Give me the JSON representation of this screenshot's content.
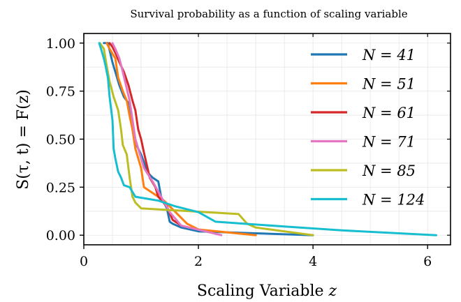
{
  "chart_data": {
    "type": "line",
    "title": "Survival probability as a function of scaling variable",
    "xlabel": "Scaling Variable z",
    "ylabel": "S(τ, t) = F(z)",
    "xlim": [
      0,
      6.4
    ],
    "ylim": [
      -0.05,
      1.05
    ],
    "xticks": [
      0,
      2,
      4,
      6
    ],
    "yticks": [
      0.0,
      0.25,
      0.5,
      0.75,
      1.0
    ],
    "xtick_labels": [
      "0",
      "2",
      "4",
      "6"
    ],
    "ytick_labels": [
      "0.00",
      "0.25",
      "0.50",
      "0.75",
      "1.00"
    ],
    "grid": true,
    "legend_position": "right",
    "series": [
      {
        "name": "N = 41",
        "color": "#1f77b4",
        "x": [
          0.35,
          0.42,
          0.5,
          0.55,
          0.62,
          0.7,
          0.8,
          0.85,
          0.9,
          1.0,
          1.05,
          1.1,
          1.2,
          1.3,
          1.35,
          1.45,
          1.5,
          1.55,
          1.7,
          2.0,
          3.0,
          4.0
        ],
        "y": [
          1.0,
          1.0,
          0.9,
          0.85,
          0.78,
          0.72,
          0.68,
          0.55,
          0.48,
          0.42,
          0.38,
          0.33,
          0.3,
          0.28,
          0.2,
          0.14,
          0.07,
          0.06,
          0.04,
          0.02,
          0.01,
          0.0
        ]
      },
      {
        "name": "N = 51",
        "color": "#ff7f0e",
        "x": [
          0.4,
          0.45,
          0.55,
          0.6,
          0.68,
          0.75,
          0.8,
          0.85,
          0.9,
          1.0,
          1.05,
          1.2,
          1.4,
          1.6,
          1.8,
          2.0,
          3.0
        ],
        "y": [
          1.0,
          0.97,
          0.92,
          0.82,
          0.75,
          0.7,
          0.62,
          0.55,
          0.45,
          0.35,
          0.25,
          0.22,
          0.18,
          0.12,
          0.06,
          0.03,
          0.0
        ]
      },
      {
        "name": "N = 61",
        "color": "#d62728",
        "x": [
          0.45,
          0.5,
          0.55,
          0.62,
          0.7,
          0.78,
          0.85,
          0.9,
          0.95,
          1.0,
          1.05,
          1.15,
          1.25,
          1.3,
          1.45,
          1.55,
          1.7
        ],
        "y": [
          1.0,
          0.98,
          0.95,
          0.9,
          0.85,
          0.78,
          0.7,
          0.65,
          0.55,
          0.5,
          0.43,
          0.3,
          0.25,
          0.2,
          0.15,
          0.08,
          0.05
        ]
      },
      {
        "name": "N = 71",
        "color": "#e377c2",
        "x": [
          0.5,
          0.55,
          0.62,
          0.68,
          0.72,
          0.8,
          0.85,
          0.9,
          1.0,
          1.05,
          1.2,
          1.35,
          1.5,
          1.7,
          2.4
        ],
        "y": [
          1.0,
          0.97,
          0.92,
          0.85,
          0.8,
          0.7,
          0.6,
          0.5,
          0.4,
          0.35,
          0.28,
          0.2,
          0.12,
          0.05,
          0.0
        ]
      },
      {
        "name": "N = 85",
        "color": "#bcbd22",
        "x": [
          0.28,
          0.35,
          0.4,
          0.45,
          0.52,
          0.6,
          0.65,
          0.68,
          0.75,
          0.8,
          0.85,
          0.9,
          1.0,
          2.7,
          2.85,
          3.0,
          4.0
        ],
        "y": [
          1.0,
          0.97,
          0.88,
          0.8,
          0.72,
          0.65,
          0.55,
          0.47,
          0.42,
          0.3,
          0.2,
          0.17,
          0.14,
          0.11,
          0.06,
          0.04,
          0.0
        ]
      },
      {
        "name": "N = 124",
        "color": "#17becf",
        "x": [
          0.27,
          0.3,
          0.35,
          0.38,
          0.42,
          0.45,
          0.5,
          0.52,
          0.55,
          0.6,
          0.65,
          0.7,
          0.8,
          0.9,
          1.1,
          1.3,
          1.5,
          1.6,
          2.0,
          2.3,
          2.8,
          3.5,
          4.5,
          6.15
        ],
        "y": [
          1.0,
          0.97,
          0.92,
          0.88,
          0.82,
          0.72,
          0.6,
          0.45,
          0.4,
          0.33,
          0.3,
          0.26,
          0.25,
          0.2,
          0.19,
          0.18,
          0.16,
          0.15,
          0.12,
          0.07,
          0.06,
          0.045,
          0.025,
          0.0
        ]
      }
    ]
  }
}
